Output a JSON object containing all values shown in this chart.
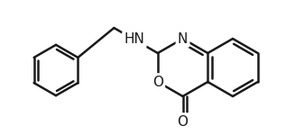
{
  "background_color": "#ffffff",
  "bond_color": "#1a1a1a",
  "bond_width": 1.8,
  "figsize": [
    3.27,
    1.5
  ],
  "dpi": 100,
  "xlim": [
    0,
    327
  ],
  "ylim": [
    0,
    150
  ]
}
